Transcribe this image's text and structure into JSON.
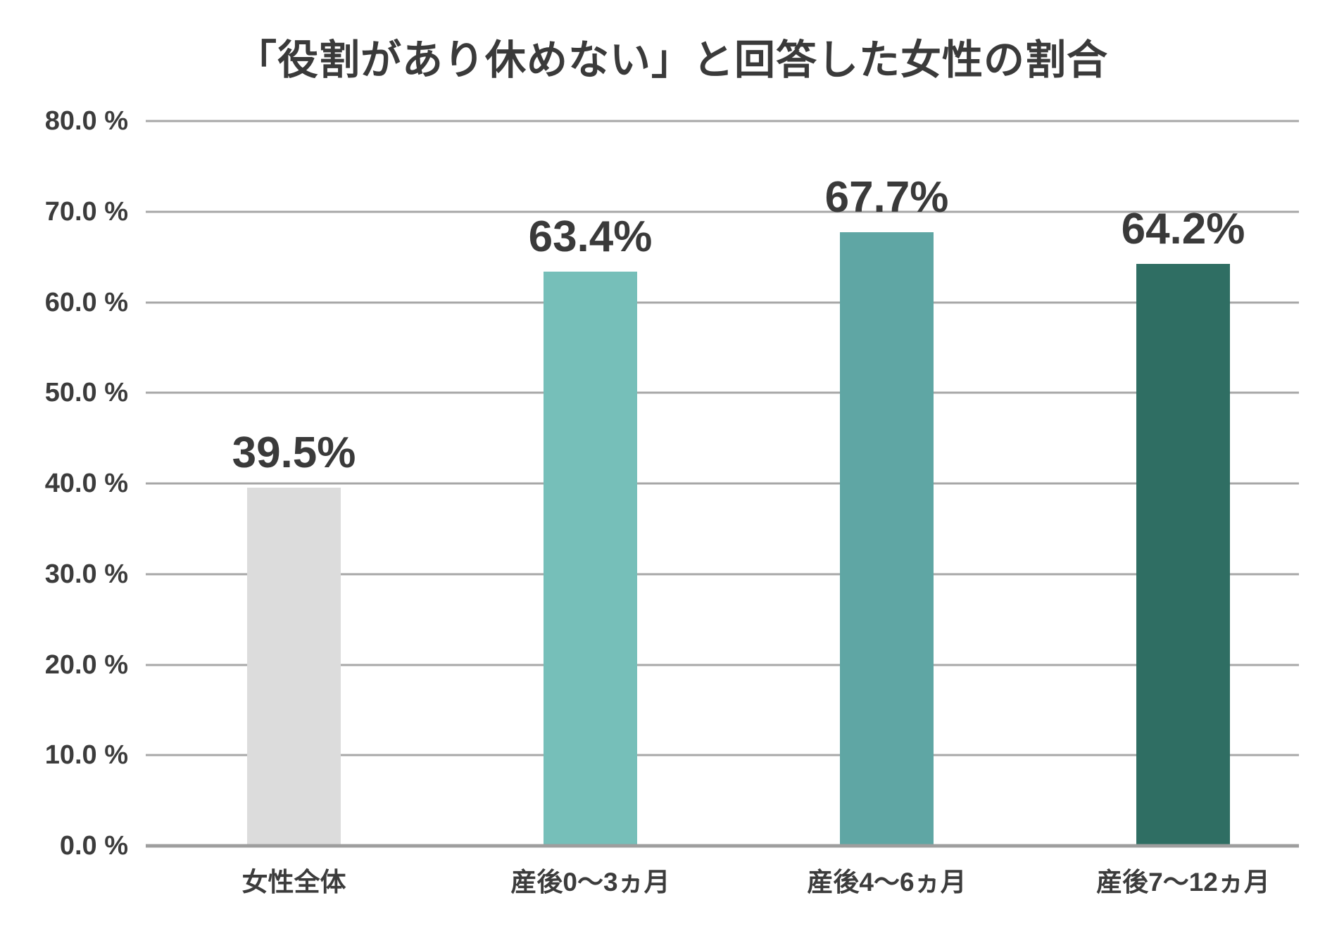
{
  "chart_data": {
    "type": "bar",
    "title": "「役割があり休めない」と回答した女性の割合",
    "categories": [
      "女性全体",
      "産後0〜3ヵ月",
      "産後4〜6ヵ月",
      "産後7〜12ヵ月"
    ],
    "values": [
      39.5,
      63.4,
      67.7,
      64.2
    ],
    "value_labels": [
      "39.5%",
      "63.4%",
      "67.7%",
      "64.2%"
    ],
    "bar_colors": [
      "#dcdcdc",
      "#76bfb9",
      "#5fa6a4",
      "#2f6e63"
    ],
    "y_ticks": [
      {
        "value": 80,
        "label": "80.0 %"
      },
      {
        "value": 70,
        "label": "70.0 %"
      },
      {
        "value": 60,
        "label": "60.0 %"
      },
      {
        "value": 50,
        "label": "50.0 %"
      },
      {
        "value": 40,
        "label": "40.0 %"
      },
      {
        "value": 30,
        "label": "30.0 %"
      },
      {
        "value": 20,
        "label": "20.0 %"
      },
      {
        "value": 10,
        "label": "10.0 %"
      },
      {
        "value": 0,
        "label": "0.0 %"
      }
    ],
    "ylim": [
      0,
      80
    ],
    "xlabel": "",
    "ylabel": "",
    "grid": true,
    "legend_position": "none",
    "colors": {
      "text": "#3a3a3a",
      "gridline": "#a7a7a7",
      "axis_line": "#9e9e9e",
      "background": "#ffffff"
    }
  }
}
